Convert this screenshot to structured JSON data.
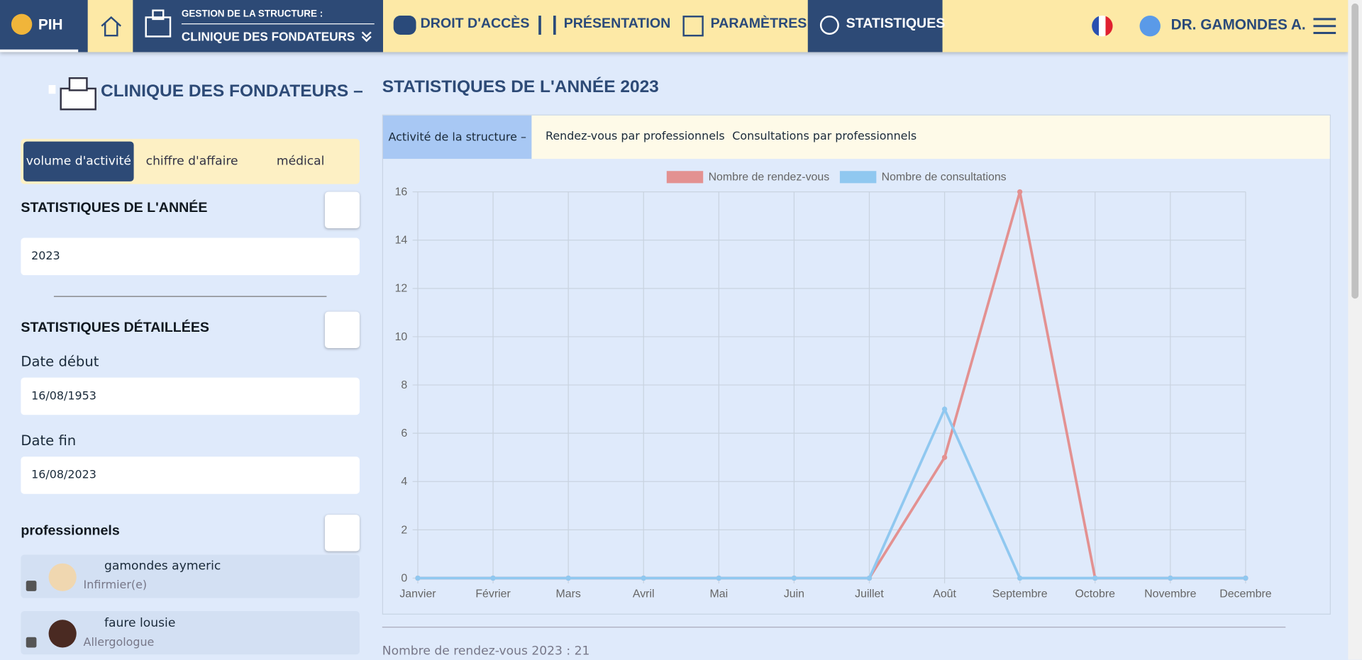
{
  "nav": {
    "brand": "PIH",
    "structure_label": "GESTION DE LA STRUCTURE :",
    "structure_name": "CLINIQUE DES FONDATEURS",
    "items": [
      "DROIT D'ACCÈS",
      "PRÉSENTATION",
      "PARAMÈTRES",
      "STATISTIQUES"
    ],
    "user": "DR. GAMONDES A."
  },
  "sidebar": {
    "clinic": "CLINIQUE DES FONDATEURS –",
    "tabs": [
      "volume d'activité",
      "chiffre d'affaire",
      "médical"
    ],
    "year_heading": "STATISTIQUES DE L'ANNÉE",
    "year": "2023",
    "detail_heading": "STATISTIQUES DÉTAILLÉES",
    "start_label": "Date début",
    "start": "16/08/1953",
    "end_label": "Date fin",
    "end": "16/08/2023",
    "pros_heading": "professionnels",
    "pros": [
      {
        "name": "gamondes aymeric",
        "role": "Infirmier(e)"
      },
      {
        "name": "faure lousie",
        "role": "Allergologue"
      }
    ]
  },
  "main": {
    "title": "STATISTIQUES DE L'ANNÉE 2023",
    "tabs": [
      "Activité de la structure –",
      "Rendez-vous par professionnels",
      "Consultations par professionnels"
    ],
    "summary": "Nombre de rendez-vous 2023 : 21"
  },
  "chart_data": {
    "type": "line",
    "categories": [
      "Janvier",
      "Février",
      "Mars",
      "Avril",
      "Mai",
      "Juin",
      "Juillet",
      "Août",
      "Septembre",
      "Octobre",
      "Novembre",
      "Decembre"
    ],
    "series": [
      {
        "name": "Nombre de rendez-vous",
        "color": "#e39191",
        "values": [
          0,
          0,
          0,
          0,
          0,
          0,
          0,
          5,
          16,
          0,
          0,
          0
        ]
      },
      {
        "name": "Nombre de consultations",
        "color": "#90c8f0",
        "values": [
          0,
          0,
          0,
          0,
          0,
          0,
          0,
          7,
          0,
          0,
          0,
          0
        ]
      }
    ],
    "ylim": [
      0,
      16
    ],
    "yticks": [
      0,
      2,
      4,
      6,
      8,
      10,
      12,
      14,
      16
    ],
    "grid": true,
    "legend": "top"
  }
}
